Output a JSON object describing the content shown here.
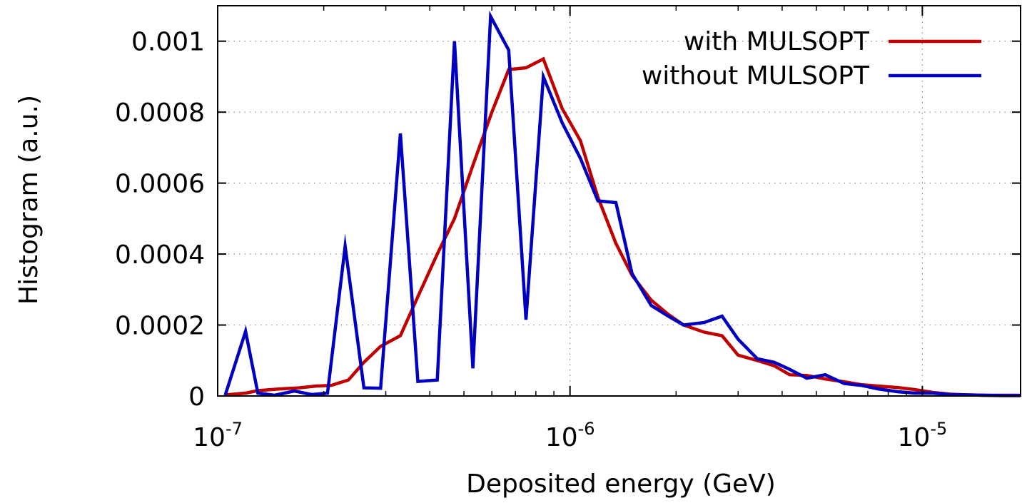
{
  "chart_data": {
    "type": "line",
    "xlabel": "Deposited energy (GeV)",
    "ylabel": "Histogram (a.u.)",
    "x_scale": "log",
    "xlim": [
      1e-07,
      1.9e-05
    ],
    "ylim": [
      0,
      0.0011
    ],
    "grid": true,
    "legend_position": "top-right",
    "x_ticks": [
      {
        "value": 1e-07,
        "base": "10",
        "exp": "-7"
      },
      {
        "value": 1e-06,
        "base": "10",
        "exp": "-6"
      },
      {
        "value": 1e-05,
        "base": "10",
        "exp": "-5"
      }
    ],
    "y_ticks": [
      {
        "value": 0,
        "label": "0"
      },
      {
        "value": 0.0002,
        "label": "0.0002"
      },
      {
        "value": 0.0004,
        "label": "0.0004"
      },
      {
        "value": 0.0006,
        "label": "0.0006"
      },
      {
        "value": 0.0008,
        "label": "0.0008"
      },
      {
        "value": 0.001,
        "label": "0.001"
      }
    ],
    "series": [
      {
        "name": "with MULSOPT",
        "color": "#c00000",
        "x": [
          1.05e-07,
          1.2e-07,
          1.3e-07,
          1.5e-07,
          1.7e-07,
          1.9e-07,
          2.1e-07,
          2.35e-07,
          2.6e-07,
          2.9e-07,
          3.3e-07,
          3.7e-07,
          4.2e-07,
          4.7e-07,
          5.3e-07,
          6e-07,
          6.7e-07,
          7.5e-07,
          8.4e-07,
          9.5e-07,
          1.07e-06,
          1.2e-06,
          1.35e-06,
          1.5e-06,
          1.7e-06,
          1.9e-06,
          2.1e-06,
          2.4e-06,
          2.7e-06,
          3e-06,
          3.4e-06,
          3.8e-06,
          4.2e-06,
          4.7e-06,
          5.3e-06,
          6e-06,
          6.7e-06,
          7.5e-06,
          8.5e-06,
          9.5e-06,
          1.07e-05,
          1.2e-05,
          1.35e-05,
          1.5e-05,
          1.7e-05,
          1.9e-05
        ],
        "y": [
          3e-06,
          8e-06,
          1.5e-05,
          2e-05,
          2.3e-05,
          2.8e-05,
          3e-05,
          4.5e-05,
          9.5e-05,
          0.00014,
          0.00017,
          0.00028,
          0.0004,
          0.0005,
          0.00065,
          0.0008,
          0.00092,
          0.000925,
          0.00095,
          0.00081,
          0.00072,
          0.00056,
          0.00043,
          0.00034,
          0.00027,
          0.00023,
          0.0002,
          0.00018,
          0.00017,
          0.000115,
          0.0001,
          8.5e-05,
          6e-05,
          5.8e-05,
          4.8e-05,
          4e-05,
          3.2e-05,
          2.8e-05,
          2.4e-05,
          1.8e-05,
          1e-05,
          5e-06,
          3e-06,
          2e-06,
          2e-06,
          2e-06
        ]
      },
      {
        "name": "without MULSOPT",
        "color": "#0000c0",
        "x": [
          1.05e-07,
          1.2e-07,
          1.3e-07,
          1.45e-07,
          1.65e-07,
          1.85e-07,
          2.05e-07,
          2.3e-07,
          2.6e-07,
          2.9e-07,
          3.3e-07,
          3.7e-07,
          4.2e-07,
          4.7e-07,
          5.3e-07,
          5.95e-07,
          6.7e-07,
          7.5e-07,
          8.4e-07,
          9.5e-07,
          1.07e-06,
          1.2e-06,
          1.35e-06,
          1.5e-06,
          1.7e-06,
          1.9e-06,
          2.1e-06,
          2.4e-06,
          2.7e-06,
          3e-06,
          3.4e-06,
          3.8e-06,
          4.2e-06,
          4.7e-06,
          5.3e-06,
          6e-06,
          6.7e-06,
          7.5e-06,
          8.5e-06,
          9.5e-06,
          1.07e-05,
          1.2e-05,
          1.35e-05,
          1.5e-05,
          1.7e-05,
          1.9e-05
        ],
        "y": [
          2e-06,
          0.000182,
          8e-06,
          2e-06,
          1.4e-05,
          4e-06,
          8e-06,
          0.000422,
          2.3e-05,
          2.2e-05,
          0.00074,
          4.1e-05,
          4.5e-05,
          0.001,
          7.8e-05,
          0.00107,
          0.000975,
          0.000215,
          0.0009,
          0.00077,
          0.00067,
          0.00055,
          0.000545,
          0.000345,
          0.000255,
          0.000225,
          0.0002,
          0.000207,
          0.000225,
          0.00016,
          0.000105,
          9.5e-05,
          7.5e-05,
          5e-05,
          6e-05,
          3.5e-05,
          3e-05,
          2e-05,
          1.2e-05,
          8e-06,
          8e-06,
          4e-06,
          3e-06,
          2e-06,
          1e-06,
          1e-06
        ]
      }
    ]
  }
}
